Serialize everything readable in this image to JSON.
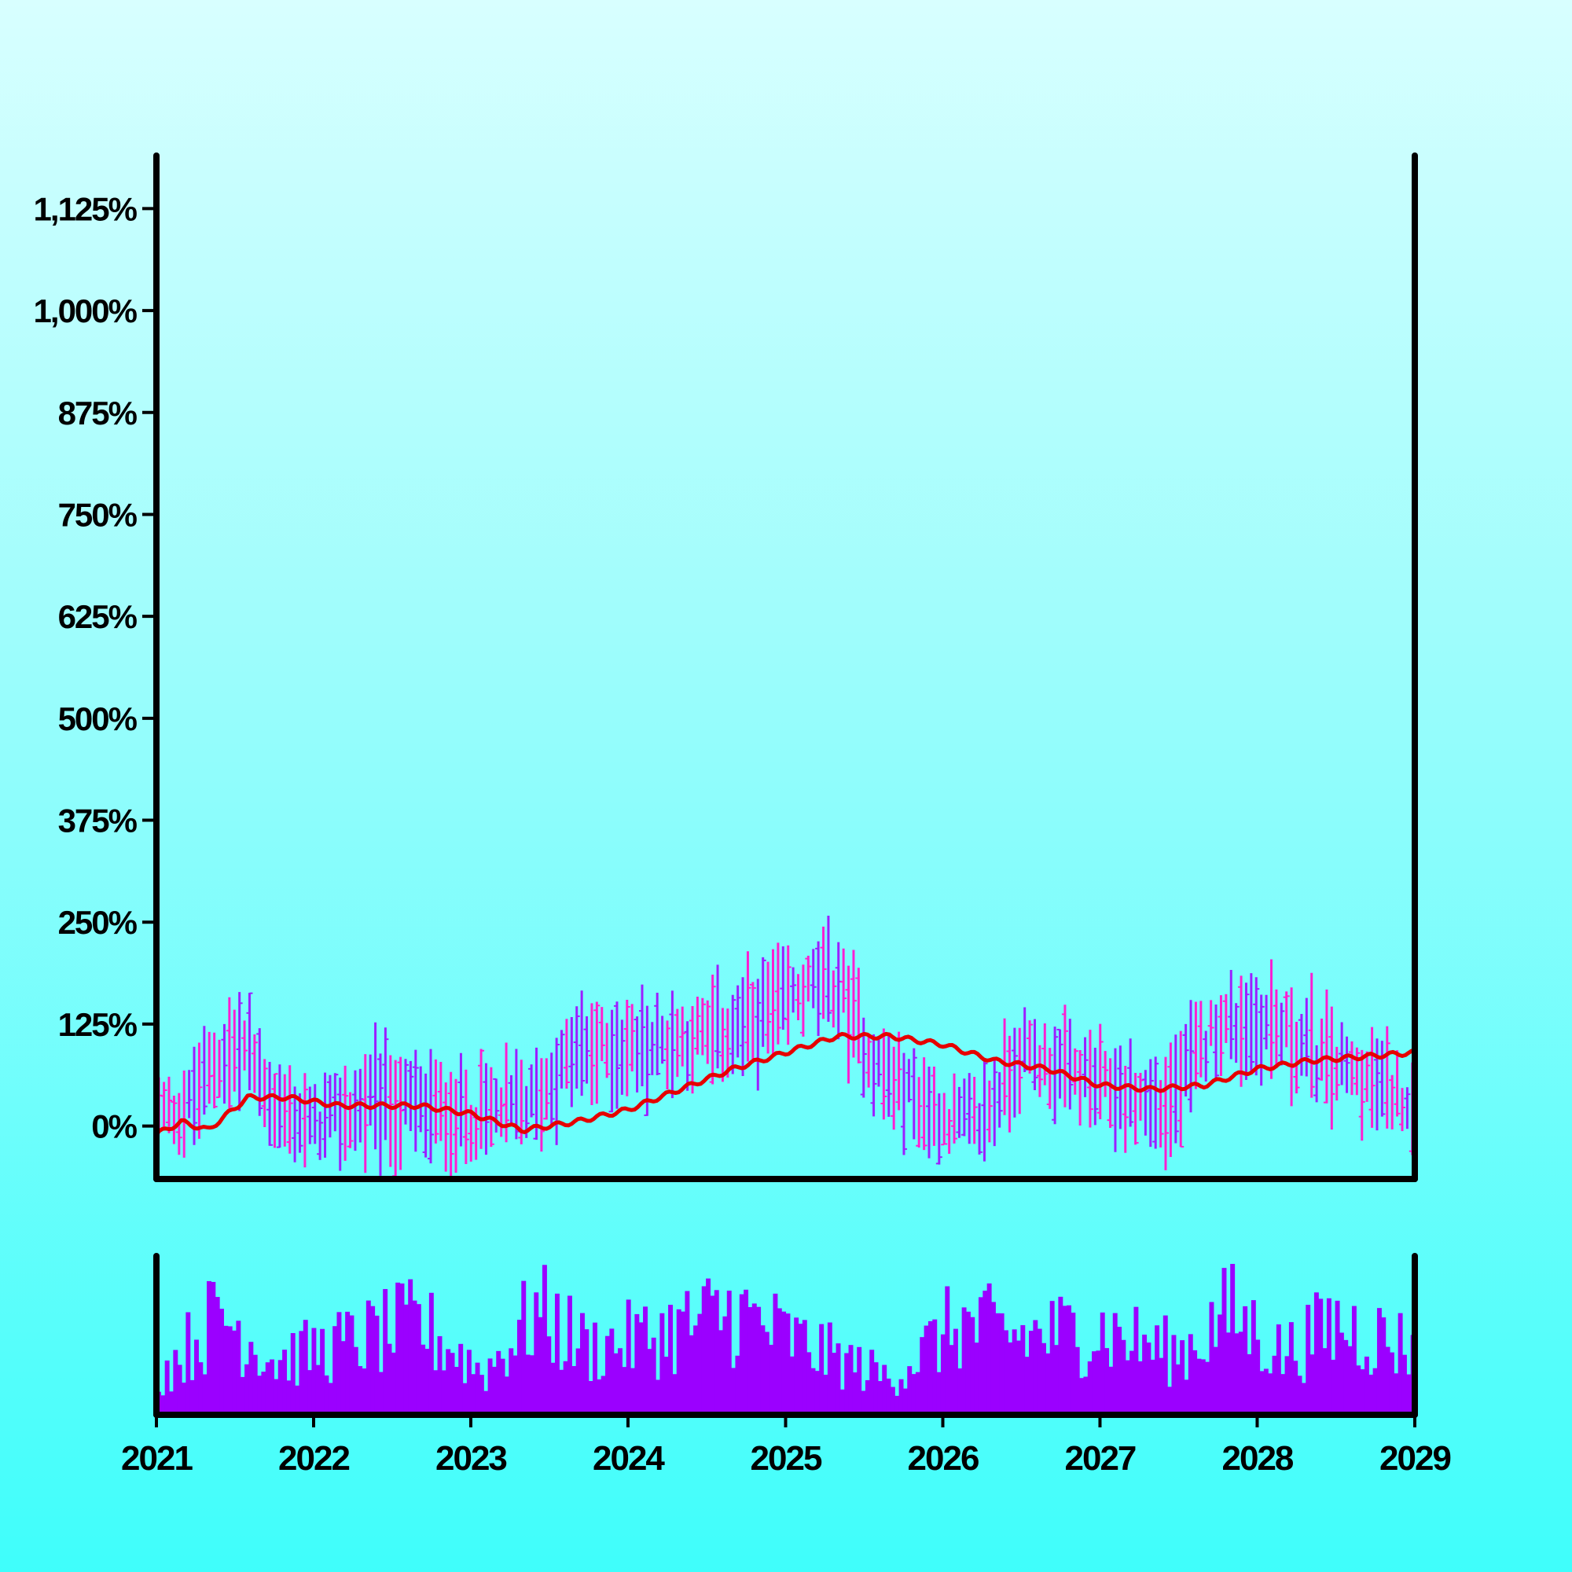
{
  "chart_data": {
    "type": "ohlc",
    "title": "",
    "xlabel": "",
    "ylabel": "",
    "ylim": [
      -65,
      1190
    ],
    "y_ticks": [
      0,
      125,
      250,
      375,
      500,
      625,
      750,
      875,
      1000,
      1125
    ],
    "y_tick_labels": [
      "0%",
      "125%",
      "250%",
      "375%",
      "500%",
      "625%",
      "750%",
      "875%",
      "1,000%",
      "1,125%"
    ],
    "xlim": [
      "2021-01-01",
      "2029-01-01"
    ],
    "x_ticks": [
      "2021-01-01",
      "2022-01-01",
      "2023-01-01",
      "2024-01-01",
      "2025-01-01",
      "2026-01-01",
      "2027-01-01",
      "2028-01-01",
      "2029-01-01"
    ],
    "x_tick_labels": [
      "2021",
      "2022",
      "2023",
      "2024",
      "2025",
      "2026",
      "2027",
      "2028",
      "2029"
    ],
    "grid": false,
    "legend": "none",
    "colors": {
      "up": "#ff1fd2",
      "down": "#9b1fff",
      "moving_average": "#e60000",
      "volume": "#9b00ff",
      "axis": "#000000",
      "background_top": "#d8ffff",
      "background_bottom": "#3ffefb"
    },
    "price_range_envelope": [
      {
        "date": "2021-01-01",
        "low": -40,
        "high": 80
      },
      {
        "date": "2021-03-01",
        "low": -40,
        "high": 70
      },
      {
        "date": "2021-06-01",
        "low": 10,
        "high": 160
      },
      {
        "date": "2021-08-01",
        "low": 20,
        "high": 170
      },
      {
        "date": "2021-10-01",
        "low": -30,
        "high": 80
      },
      {
        "date": "2022-01-01",
        "low": -60,
        "high": 60
      },
      {
        "date": "2022-06-01",
        "low": -50,
        "high": 110
      },
      {
        "date": "2023-01-01",
        "low": -60,
        "high": 80
      },
      {
        "date": "2023-06-01",
        "low": -40,
        "high": 100
      },
      {
        "date": "2023-09-01",
        "low": 20,
        "high": 160
      },
      {
        "date": "2024-03-01",
        "low": 30,
        "high": 170
      },
      {
        "date": "2024-09-01",
        "low": 40,
        "high": 190
      },
      {
        "date": "2025-03-01",
        "low": 110,
        "high": 230
      },
      {
        "date": "2025-05-01",
        "low": 100,
        "high": 250
      },
      {
        "date": "2025-08-01",
        "low": 0,
        "high": 140
      },
      {
        "date": "2026-01-01",
        "low": -50,
        "high": 70
      },
      {
        "date": "2026-04-01",
        "low": -60,
        "high": 70
      },
      {
        "date": "2026-07-01",
        "low": 20,
        "high": 160
      },
      {
        "date": "2027-01-01",
        "low": -10,
        "high": 110
      },
      {
        "date": "2027-06-01",
        "low": -60,
        "high": 100
      },
      {
        "date": "2027-10-01",
        "low": 60,
        "high": 190
      },
      {
        "date": "2028-02-01",
        "low": 50,
        "high": 200
      },
      {
        "date": "2028-06-01",
        "low": 0,
        "high": 160
      },
      {
        "date": "2029-01-01",
        "low": -30,
        "high": 90
      }
    ],
    "moving_average": [
      {
        "date": "2021-01-01",
        "value": -10
      },
      {
        "date": "2021-03-01",
        "value": 5
      },
      {
        "date": "2021-05-01",
        "value": -5
      },
      {
        "date": "2021-08-01",
        "value": 35
      },
      {
        "date": "2021-11-01",
        "value": 35
      },
      {
        "date": "2022-03-01",
        "value": 25
      },
      {
        "date": "2022-09-01",
        "value": 25
      },
      {
        "date": "2023-01-01",
        "value": 15
      },
      {
        "date": "2023-05-01",
        "value": -5
      },
      {
        "date": "2023-09-01",
        "value": 5
      },
      {
        "date": "2024-01-01",
        "value": 20
      },
      {
        "date": "2024-05-01",
        "value": 45
      },
      {
        "date": "2024-09-01",
        "value": 70
      },
      {
        "date": "2025-01-01",
        "value": 90
      },
      {
        "date": "2025-05-01",
        "value": 110
      },
      {
        "date": "2025-09-01",
        "value": 110
      },
      {
        "date": "2026-01-01",
        "value": 100
      },
      {
        "date": "2026-05-01",
        "value": 80
      },
      {
        "date": "2026-09-01",
        "value": 70
      },
      {
        "date": "2027-01-01",
        "value": 50
      },
      {
        "date": "2027-05-01",
        "value": 45
      },
      {
        "date": "2027-09-01",
        "value": 50
      },
      {
        "date": "2028-01-01",
        "value": 70
      },
      {
        "date": "2028-05-01",
        "value": 80
      },
      {
        "date": "2028-09-01",
        "value": 85
      },
      {
        "date": "2029-01-01",
        "value": 90
      }
    ],
    "volume_shape": [
      {
        "date": "2021-01-01",
        "value": 0.3
      },
      {
        "date": "2021-06-01",
        "value": 0.85
      },
      {
        "date": "2021-10-01",
        "value": 0.45
      },
      {
        "date": "2022-04-01",
        "value": 0.6
      },
      {
        "date": "2022-09-01",
        "value": 0.75
      },
      {
        "date": "2023-02-01",
        "value": 0.35
      },
      {
        "date": "2023-06-01",
        "value": 0.85
      },
      {
        "date": "2023-10-01",
        "value": 0.55
      },
      {
        "date": "2024-03-01",
        "value": 0.65
      },
      {
        "date": "2024-09-01",
        "value": 0.85
      },
      {
        "date": "2025-03-01",
        "value": 0.55
      },
      {
        "date": "2025-09-01",
        "value": 0.3
      },
      {
        "date": "2026-02-01",
        "value": 0.75
      },
      {
        "date": "2026-07-01",
        "value": 0.65
      },
      {
        "date": "2027-01-01",
        "value": 0.7
      },
      {
        "date": "2027-07-01",
        "value": 0.5
      },
      {
        "date": "2027-11-01",
        "value": 0.85
      },
      {
        "date": "2028-03-01",
        "value": 0.5
      },
      {
        "date": "2028-07-01",
        "value": 0.75
      },
      {
        "date": "2029-01-01",
        "value": 0.55
      }
    ]
  }
}
